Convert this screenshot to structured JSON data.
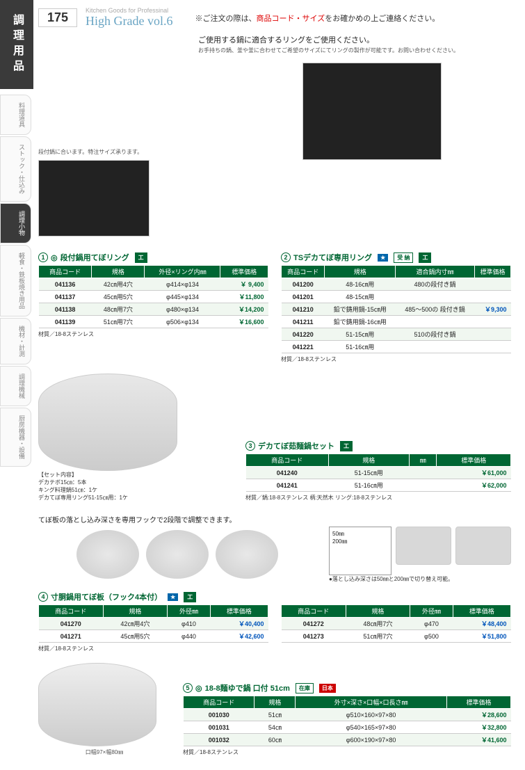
{
  "page_number": "175",
  "book_subtitle": "Kitchen Goods for Professinal",
  "book_title": "High Grade vol.6",
  "top_notice_pre": "※ご注文の際は、",
  "top_notice_hl": "商品コード・サイズ",
  "top_notice_post": "をお確かめの上ご連絡ください。",
  "sidebar_main": "調理用品",
  "sidebar_tabs": [
    "料理道具",
    "ストック・仕込み",
    "調理小物",
    "軽食・鉄板焼き用品",
    "機材・計測",
    "調理機械",
    "厨房機器・設備"
  ],
  "intro_heading": "ご使用する鍋に適合するリングをご使用ください。",
  "intro_text": "お手持ちの鍋、釜や釜に合わせてご希望のサイズにてリングの製作が可能です。お問い合わせください。",
  "caption_left": "段付鍋に合います。特注サイズ承ります。",
  "section1": {
    "num": "1",
    "title": "段付鍋用てぼリング",
    "headers": [
      "商品コード",
      "規格",
      "外径×リング内㎜",
      "標準価格"
    ],
    "rows": [
      {
        "code": "041136",
        "spec": "42㎝用4穴",
        "dim": "φ414×φ134",
        "price": "￥ 9,400"
      },
      {
        "code": "041137",
        "spec": "45㎝用5穴",
        "dim": "φ445×φ134",
        "price": "￥11,800"
      },
      {
        "code": "041138",
        "spec": "48㎝用7穴",
        "dim": "φ480×φ134",
        "price": "￥14,200"
      },
      {
        "code": "041139",
        "spec": "51㎝用7穴",
        "dim": "φ506×φ134",
        "price": "￥16,600"
      }
    ],
    "material": "材質／18-8ステンレス"
  },
  "section2": {
    "num": "2",
    "title": "TSデカてぼ専用リング",
    "badges": [
      "★",
      "受 納"
    ],
    "headers": [
      "商品コード",
      "規格",
      "適合鍋内寸㎜",
      "標準価格"
    ],
    "rows": [
      {
        "code": "041200",
        "spec": "48-16㎝用",
        "fit": "480の段付き鍋",
        "price": ""
      },
      {
        "code": "041201",
        "spec": "48-15㎝用",
        "fit": "",
        "price": ""
      },
      {
        "code": "041210",
        "spec": "鉛で鋳用鍋-15㎝用",
        "fit": "485～500の 段付き鍋",
        "price": "￥9,300"
      },
      {
        "code": "041211",
        "spec": "鉛で鋳用鍋-16㎝用",
        "fit": "",
        "price": ""
      },
      {
        "code": "041220",
        "spec": "51-15㎝用",
        "fit": "510の段付き鍋",
        "price": ""
      },
      {
        "code": "041221",
        "spec": "51-16㎝用",
        "fit": "",
        "price": ""
      }
    ],
    "material": "材質／18-8ステンレス"
  },
  "set_label": "【セット内容】",
  "set_text": "デカテボ15㎝：5本\nキング料理鍋51㎝：1ケ\nデカてぼ専用リング51-15㎝用：1ケ",
  "section3": {
    "num": "3",
    "title": "デカてぼ茹麺鍋セット",
    "headers": [
      "商品コード",
      "規格",
      "㎜",
      "標準価格"
    ],
    "rows": [
      {
        "code": "041240",
        "spec": "51-15㎝用",
        "dim": "",
        "price": "￥61,000"
      },
      {
        "code": "041241",
        "spec": "51-16㎝用",
        "dim": "",
        "price": "￥62,000"
      }
    ],
    "material": "材質／鍋:18-8ステンレス 柄:天然木 リング:18-8ステンレス"
  },
  "plate_intro": "てぼ板の落とし込み深さを専用フックで2段階で調整できます。",
  "diagram_note": "●落とし込み深さは50㎜と200㎜で切り替え可能。",
  "diagram_dims": {
    "a": "50㎜",
    "b": "200㎜"
  },
  "section4": {
    "num": "4",
    "title": "寸胴鍋用てぼ板（フック4本付）",
    "badge": "★",
    "headers": [
      "商品コード",
      "規格",
      "外径㎜",
      "標準価格"
    ],
    "left_rows": [
      {
        "code": "041270",
        "spec": "42㎝用4穴",
        "dim": "φ410",
        "price": "￥40,400"
      },
      {
        "code": "041271",
        "spec": "45㎝用5穴",
        "dim": "φ440",
        "price": "￥42,600"
      }
    ],
    "right_rows": [
      {
        "code": "041272",
        "spec": "48㎝用7穴",
        "dim": "φ470",
        "price": "￥48,400"
      },
      {
        "code": "041273",
        "spec": "51㎝用7穴",
        "dim": "φ500",
        "price": "￥51,800"
      }
    ],
    "material": "材質／18-8ステンレス"
  },
  "section5": {
    "num": "5",
    "title": "18-8麺ゆで鍋 口付 51cm",
    "headers": [
      "商品コード",
      "規格",
      "外寸×深さ×口幅×口長さ㎜",
      "標準価格"
    ],
    "rows": [
      {
        "code": "001030",
        "spec": "51㎝",
        "dim": "φ510×160×97×80",
        "price": "￥28,600"
      },
      {
        "code": "001031",
        "spec": "54㎝",
        "dim": "φ540×165×97×80",
        "price": "￥32,800"
      },
      {
        "code": "001032",
        "spec": "60㎝",
        "dim": "φ600×190×97×80",
        "price": "￥41,600"
      }
    ],
    "material": "材質／18-8ステンレス",
    "caption": "口幅97×幅80㎜"
  },
  "colors": {
    "header_bg": "#006633",
    "price_blue": "#0055bb",
    "title_blue": "#6aa5c4"
  }
}
